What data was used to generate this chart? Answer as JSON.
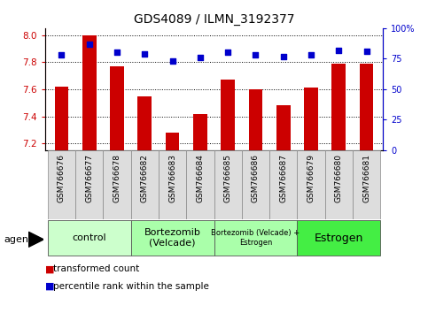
{
  "title": "GDS4089 / ILMN_3192377",
  "samples": [
    "GSM766676",
    "GSM766677",
    "GSM766678",
    "GSM766682",
    "GSM766683",
    "GSM766684",
    "GSM766685",
    "GSM766686",
    "GSM766687",
    "GSM766679",
    "GSM766680",
    "GSM766681"
  ],
  "bar_values": [
    7.62,
    8.0,
    7.77,
    7.55,
    7.28,
    7.42,
    7.67,
    7.6,
    7.48,
    7.61,
    7.79,
    7.79
  ],
  "percentile_values": [
    78,
    87,
    80,
    79,
    73,
    76,
    80,
    78,
    77,
    78,
    82,
    81
  ],
  "ylim": [
    7.15,
    8.05
  ],
  "yticks": [
    7.2,
    7.4,
    7.6,
    7.8,
    8.0
  ],
  "right_yticks": [
    0,
    25,
    50,
    75,
    100
  ],
  "right_ylim": [
    0,
    100
  ],
  "bar_color": "#cc0000",
  "dot_color": "#0000cc",
  "grid_color": "#000000",
  "bg_color": "#ffffff",
  "groups": [
    {
      "label": "control",
      "start": 0,
      "end": 3,
      "color": "#ccffcc",
      "fontsize": 8
    },
    {
      "label": "Bortezomib\n(Velcade)",
      "start": 3,
      "end": 6,
      "color": "#aaffaa",
      "fontsize": 8
    },
    {
      "label": "Bortezomib (Velcade) +\nEstrogen",
      "start": 6,
      "end": 9,
      "color": "#aaffaa",
      "fontsize": 6
    },
    {
      "label": "Estrogen",
      "start": 9,
      "end": 12,
      "color": "#44ee44",
      "fontsize": 9
    }
  ],
  "legend_bar_label": "transformed count",
  "legend_dot_label": "percentile rank within the sample",
  "agent_label": "agent",
  "xlabel_fontsize": 6.5,
  "bar_width": 0.5,
  "dot_size": 18,
  "title_fontsize": 10
}
